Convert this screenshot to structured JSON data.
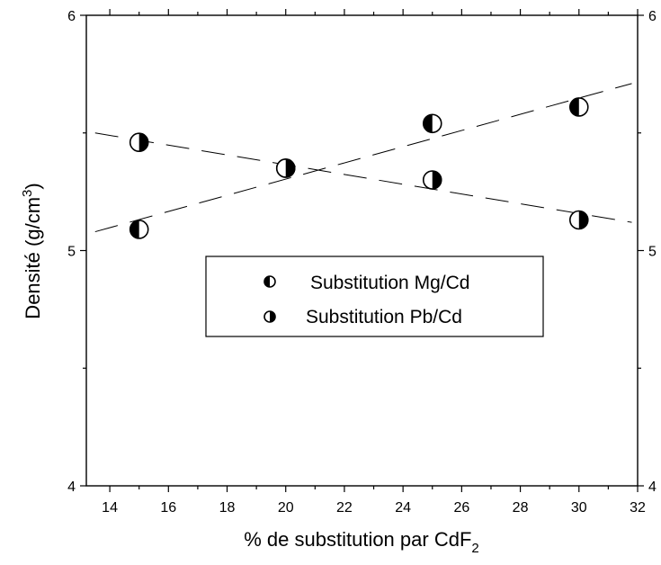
{
  "chart_data": {
    "type": "scatter",
    "title": "",
    "xlabel": "% de substitution par CdF",
    "xlabel_sub": "2",
    "ylabel": "Densité (g/cm",
    "ylabel_sup": "3",
    "ylabel_close": ")",
    "xlim": [
      13.2,
      32
    ],
    "ylim": [
      4,
      6
    ],
    "x_ticks": [
      14,
      16,
      18,
      20,
      22,
      24,
      26,
      28,
      30,
      32
    ],
    "y_ticks": [
      4,
      5,
      6
    ],
    "grid": false,
    "legend_position": "center",
    "series": [
      {
        "name": "Substitution Mg/Cd",
        "marker": "half-filled-circle-left",
        "x": [
          15,
          20,
          25,
          30
        ],
        "y": [
          5.09,
          5.35,
          5.54,
          5.61
        ],
        "trend": {
          "x": [
            13.5,
            31.8
          ],
          "y": [
            5.08,
            5.71
          ]
        }
      },
      {
        "name": "Substitution Pb/Cd",
        "marker": "half-filled-circle-right",
        "x": [
          15,
          20,
          25,
          30
        ],
        "y": [
          5.46,
          5.35,
          5.3,
          5.13
        ],
        "trend": {
          "x": [
            13.5,
            31.8
          ],
          "y": [
            5.5,
            5.12
          ]
        }
      }
    ]
  }
}
